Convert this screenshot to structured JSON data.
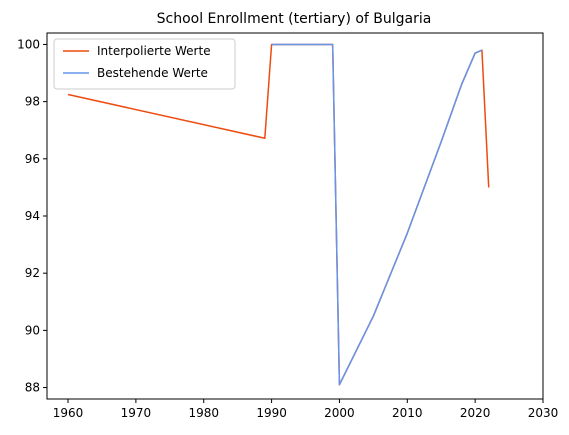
{
  "chart_data": {
    "type": "line",
    "title": "School Enrollment (tertiary) of Bulgaria",
    "xlabel": "",
    "ylabel": "",
    "xlim": [
      1956.9,
      2030
    ],
    "ylim": [
      87.6,
      100.4
    ],
    "xticks": [
      1960,
      1970,
      1980,
      1990,
      2000,
      2010,
      2020,
      2030
    ],
    "yticks": [
      88,
      90,
      92,
      94,
      96,
      98,
      100
    ],
    "grid": false,
    "legend_position": "top-left",
    "series": [
      {
        "name": "Interpolierte Werte",
        "color": "#ee4b0f",
        "points": [
          [
            1960,
            98.25
          ],
          [
            1989,
            96.72
          ],
          [
            1990,
            100.0
          ],
          [
            1999,
            100.0
          ],
          [
            2000,
            88.1
          ],
          [
            2005,
            90.5
          ],
          [
            2010,
            93.4
          ],
          [
            2015,
            96.6
          ],
          [
            2018,
            98.6
          ],
          [
            2020,
            99.7
          ],
          [
            2021,
            99.8
          ],
          [
            2022,
            95.0
          ]
        ]
      },
      {
        "name": "Bestehende Werte",
        "color": "#6495ed",
        "points": [
          [
            1990,
            100.0
          ],
          [
            1999,
            100.0
          ],
          [
            2000,
            88.1
          ],
          [
            2005,
            90.5
          ],
          [
            2010,
            93.4
          ],
          [
            2015,
            96.6
          ],
          [
            2018,
            98.6
          ],
          [
            2020,
            99.7
          ],
          [
            2021,
            99.8
          ]
        ]
      }
    ]
  }
}
